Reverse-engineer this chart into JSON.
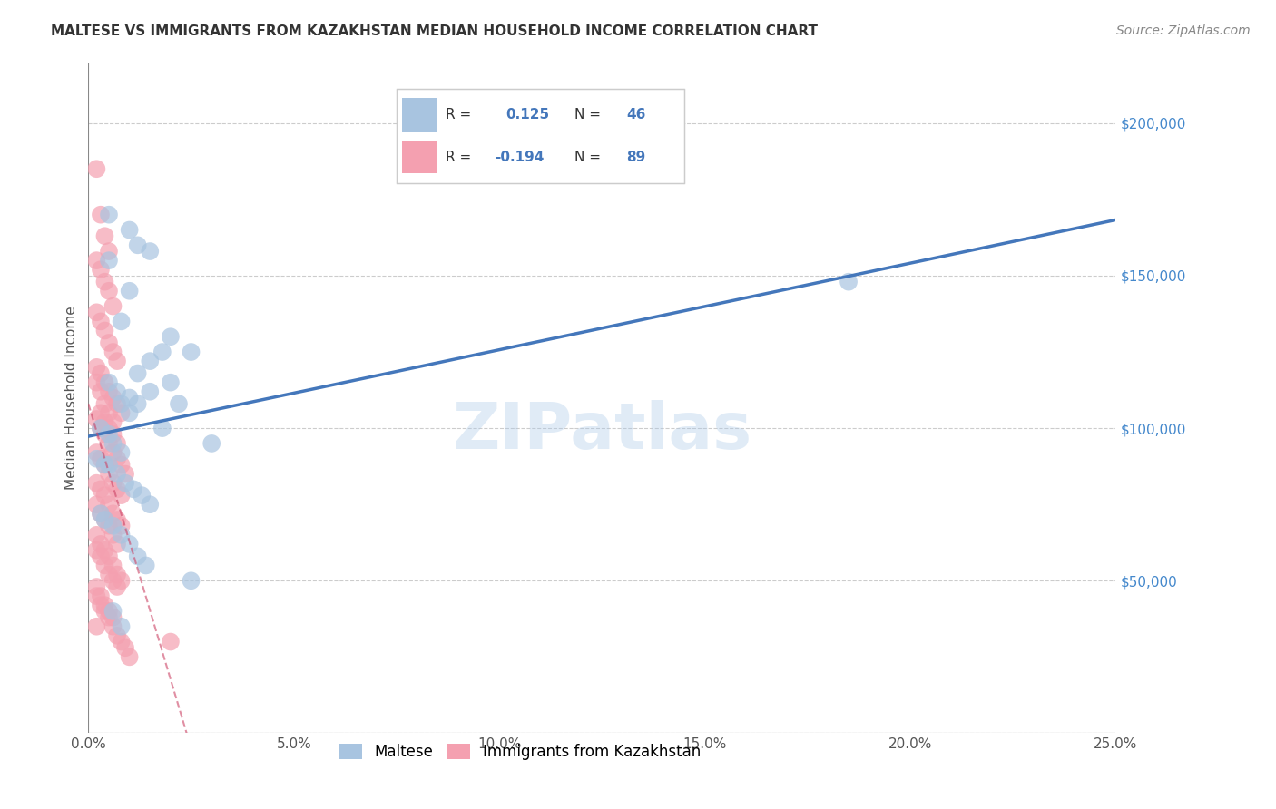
{
  "title": "MALTESE VS IMMIGRANTS FROM KAZAKHSTAN MEDIAN HOUSEHOLD INCOME CORRELATION CHART",
  "source": "Source: ZipAtlas.com",
  "ylabel": "Median Household Income",
  "xlabel_ticks": [
    "0.0%",
    "5.0%",
    "10.0%",
    "15.0%",
    "20.0%",
    "25.0%"
  ],
  "xlabel_vals": [
    0.0,
    0.05,
    0.1,
    0.15,
    0.2,
    0.25
  ],
  "ylim": [
    0,
    220000
  ],
  "xlim": [
    0.0,
    0.25
  ],
  "ytick_vals": [
    0,
    50000,
    100000,
    150000,
    200000
  ],
  "ytick_labels": [
    "",
    "$50,000",
    "$100,000",
    "$150,000",
    "$200,000"
  ],
  "legend1_label": "R =   0.125   N = 46",
  "legend2_label": "R = -0.194   N = 89",
  "r1": 0.125,
  "n1": 46,
  "r2": -0.194,
  "n2": 89,
  "color_blue": "#a8c4e0",
  "color_pink": "#f4a0b0",
  "line_blue": "#4477bb",
  "line_pink": "#cc4466",
  "line_gray": "#cccccc",
  "watermark": "ZIPatlas",
  "blue_scatter_x": [
    0.005,
    0.01,
    0.015,
    0.005,
    0.01,
    0.008,
    0.012,
    0.025,
    0.02,
    0.018,
    0.005,
    0.007,
    0.008,
    0.01,
    0.012,
    0.015,
    0.003,
    0.005,
    0.006,
    0.008,
    0.01,
    0.012,
    0.015,
    0.018,
    0.02,
    0.022,
    0.005,
    0.007,
    0.009,
    0.011,
    0.013,
    0.015,
    0.003,
    0.004,
    0.006,
    0.008,
    0.01,
    0.012,
    0.014,
    0.002,
    0.004,
    0.006,
    0.008,
    0.185,
    0.025,
    0.03
  ],
  "blue_scatter_y": [
    170000,
    165000,
    158000,
    155000,
    145000,
    135000,
    160000,
    125000,
    130000,
    125000,
    115000,
    112000,
    108000,
    105000,
    118000,
    122000,
    100000,
    98000,
    95000,
    92000,
    110000,
    108000,
    112000,
    100000,
    115000,
    108000,
    88000,
    85000,
    82000,
    80000,
    78000,
    75000,
    72000,
    70000,
    68000,
    65000,
    62000,
    58000,
    55000,
    90000,
    88000,
    40000,
    35000,
    148000,
    50000,
    95000
  ],
  "pink_scatter_x": [
    0.002,
    0.003,
    0.004,
    0.005,
    0.002,
    0.003,
    0.004,
    0.005,
    0.006,
    0.002,
    0.003,
    0.004,
    0.005,
    0.006,
    0.007,
    0.002,
    0.003,
    0.004,
    0.005,
    0.006,
    0.007,
    0.008,
    0.002,
    0.003,
    0.004,
    0.005,
    0.006,
    0.007,
    0.008,
    0.009,
    0.002,
    0.003,
    0.004,
    0.005,
    0.006,
    0.007,
    0.008,
    0.002,
    0.003,
    0.004,
    0.005,
    0.006,
    0.007,
    0.008,
    0.002,
    0.003,
    0.004,
    0.005,
    0.006,
    0.002,
    0.003,
    0.004,
    0.005,
    0.006,
    0.007,
    0.002,
    0.003,
    0.004,
    0.005,
    0.006,
    0.007,
    0.008,
    0.002,
    0.003,
    0.004,
    0.005,
    0.006,
    0.007,
    0.002,
    0.003,
    0.004,
    0.005,
    0.006,
    0.007,
    0.002,
    0.003,
    0.004,
    0.005,
    0.006,
    0.007,
    0.008,
    0.009,
    0.01,
    0.02,
    0.002,
    0.003,
    0.004,
    0.005,
    0.006
  ],
  "pink_scatter_y": [
    185000,
    170000,
    163000,
    158000,
    155000,
    152000,
    148000,
    145000,
    140000,
    138000,
    135000,
    132000,
    128000,
    125000,
    122000,
    120000,
    118000,
    115000,
    112000,
    110000,
    108000,
    105000,
    103000,
    100000,
    98000,
    95000,
    92000,
    90000,
    88000,
    85000,
    82000,
    80000,
    78000,
    75000,
    72000,
    70000,
    68000,
    65000,
    62000,
    60000,
    58000,
    55000,
    52000,
    50000,
    48000,
    45000,
    42000,
    40000,
    38000,
    35000,
    105000,
    102000,
    100000,
    98000,
    95000,
    92000,
    90000,
    88000,
    85000,
    82000,
    80000,
    78000,
    75000,
    72000,
    70000,
    68000,
    65000,
    62000,
    60000,
    58000,
    55000,
    52000,
    50000,
    48000,
    45000,
    42000,
    40000,
    38000,
    35000,
    32000,
    30000,
    28000,
    25000,
    30000,
    115000,
    112000,
    108000,
    105000,
    102000
  ]
}
